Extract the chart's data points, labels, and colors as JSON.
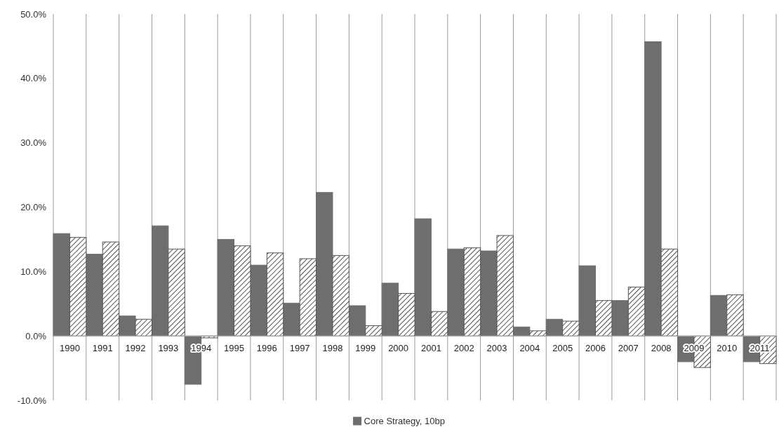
{
  "chart_data": {
    "type": "bar",
    "categories": [
      "1990",
      "1991",
      "1992",
      "1993",
      "1994",
      "1995",
      "1996",
      "1997",
      "1998",
      "1999",
      "2000",
      "2001",
      "2002",
      "2003",
      "2004",
      "2005",
      "2006",
      "2007",
      "2008",
      "2009",
      "2010",
      "2011"
    ],
    "series": [
      {
        "name": "Core Strategy, 10bp",
        "color": "#6e6e6e",
        "values": [
          15.9,
          12.7,
          3.1,
          17.1,
          -7.5,
          15.0,
          11.0,
          5.1,
          22.3,
          4.7,
          8.2,
          18.2,
          13.5,
          13.2,
          1.4,
          2.6,
          10.9,
          5.5,
          45.7,
          -4.0,
          6.3,
          -4.0
        ]
      },
      {
        "color": "#555555",
        "values": [
          15.3,
          14.6,
          2.6,
          13.5,
          -0.3,
          14.0,
          12.9,
          12.0,
          12.5,
          1.6,
          6.6,
          3.8,
          13.7,
          15.6,
          0.8,
          2.3,
          5.5,
          7.6,
          13.5,
          -4.9,
          6.4,
          -4.3
        ]
      }
    ],
    "ylim": [
      -10,
      50
    ],
    "yticks": [
      {
        "value": -10,
        "label": "-10.0%"
      },
      {
        "value": 0,
        "label": "0.0%"
      },
      {
        "value": 10,
        "label": "10.0%"
      },
      {
        "value": 20,
        "label": "20.0%"
      },
      {
        "value": 30,
        "label": "30.0%"
      },
      {
        "value": 40,
        "label": "40.0%"
      },
      {
        "value": 50,
        "label": "50.0%"
      }
    ],
    "grid": "x",
    "legend": "bottom"
  }
}
